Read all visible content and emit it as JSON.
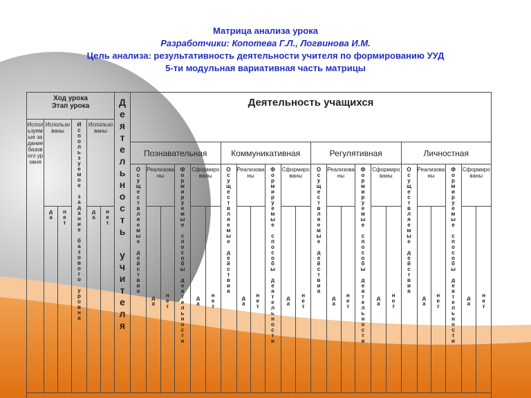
{
  "header": {
    "title": "Матрица анализа урока",
    "authors": "Разработчики: Копотева Г.Л., Логвинова И.М.",
    "goal": "Цель анализа: результативность деятельности учителя по формированию УУД",
    "subtitle": "5-ти модульная вариативная часть матрицы"
  },
  "table": {
    "lesson_header": [
      "Ход урока",
      "Этап урока"
    ],
    "lesson_columns": [
      {
        "label": "Используемые задание базового уровня"
      },
      {
        "label": "Использованы",
        "sub": [
          "да",
          "нет"
        ]
      },
      {
        "label": "Используемое задание базового уровня"
      },
      {
        "label": "Использованы",
        "sub": [
          "да",
          "нет"
        ]
      }
    ],
    "teacher": "Деятельность учителя",
    "students": "Деятельность учащихся",
    "groups": [
      {
        "name": "Познавательная",
        "columns": [
          {
            "label": "Осуществляемые действия"
          },
          {
            "label": "Реализованы",
            "sub": [
              "да",
              "нет"
            ]
          },
          {
            "label": "Формируемые способы деятельности"
          },
          {
            "label": "Сформированы",
            "sub": [
              "да",
              "нет"
            ]
          }
        ]
      },
      {
        "name": "Коммуникативная",
        "columns": [
          {
            "label": "Осуществляемые действия"
          },
          {
            "label": "Реализованы",
            "sub": [
              "да",
              "нет"
            ]
          },
          {
            "label": "Формируемые способы деятельности"
          },
          {
            "label": "Сформированы",
            "sub": [
              "да",
              "нет"
            ]
          }
        ]
      },
      {
        "name": "Регулятивная",
        "columns": [
          {
            "label": "Осуществляемые действия"
          },
          {
            "label": "Реализованы",
            "sub": [
              "да",
              "нет"
            ]
          },
          {
            "label": "Формируемые способы деятельности"
          },
          {
            "label": "Сформированы",
            "sub": [
              "да",
              "нет"
            ]
          }
        ]
      },
      {
        "name": "Личностная",
        "columns": [
          {
            "label": "Осуществляемые действия"
          },
          {
            "label": "Реализованы",
            "sub": [
              "да",
              "нет"
            ]
          },
          {
            "label": "Формируемые способы деятельности"
          },
          {
            "label": "Сформированы",
            "sub": [
              "да",
              "нет"
            ]
          }
        ]
      }
    ]
  }
}
